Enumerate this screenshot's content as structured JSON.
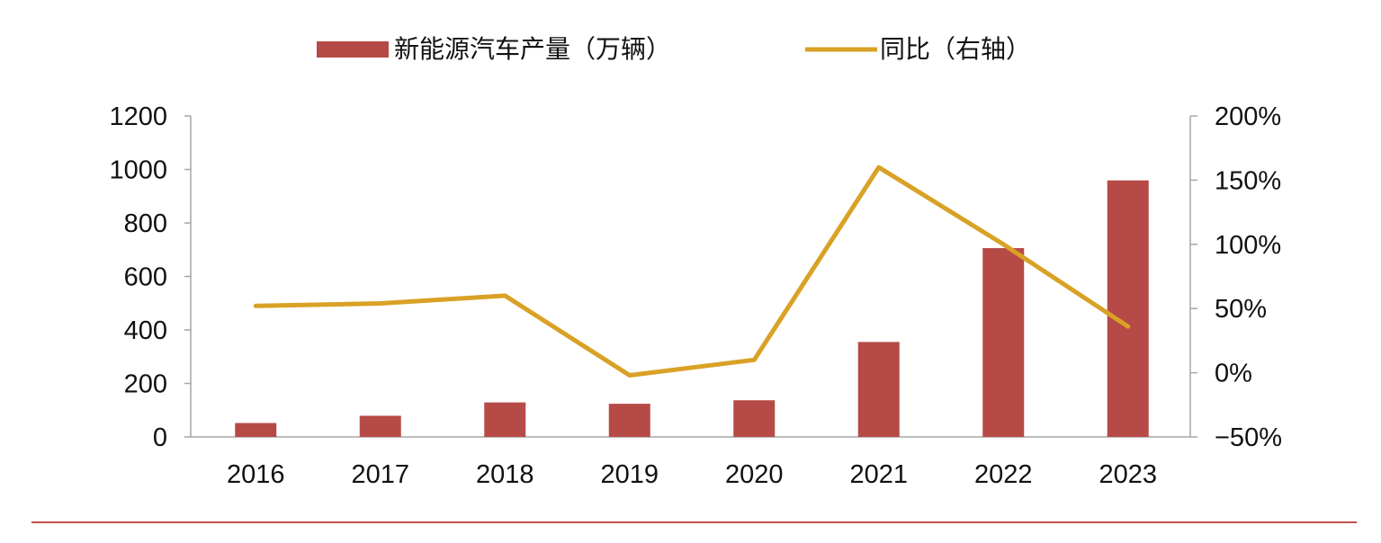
{
  "chart_data": {
    "type": "bar",
    "categories": [
      "2016",
      "2017",
      "2018",
      "2019",
      "2020",
      "2021",
      "2022",
      "2023"
    ],
    "series": [
      {
        "name": "新能源汽车产量（万辆）",
        "kind": "bar",
        "axis": "left",
        "color": "#b64a47",
        "values": [
          52,
          79,
          129,
          124,
          137,
          355,
          706,
          959
        ]
      },
      {
        "name": "同比（右轴）",
        "kind": "line",
        "axis": "right",
        "color": "#d9a125",
        "values": [
          0.52,
          0.54,
          0.6,
          -0.02,
          0.1,
          1.6,
          1.0,
          0.36
        ]
      }
    ],
    "y_left": {
      "min": 0,
      "max": 1200,
      "ticks": [
        0,
        200,
        400,
        600,
        800,
        1000,
        1200
      ],
      "tick_labels": [
        "0",
        "200",
        "400",
        "600",
        "800",
        "1000",
        "1200"
      ]
    },
    "y_right": {
      "min": -0.5,
      "max": 2.0,
      "ticks": [
        -0.5,
        0,
        0.5,
        1.0,
        1.5,
        2.0
      ],
      "tick_labels": [
        "−50%",
        "0%",
        "50%",
        "100%",
        "150%",
        "200%"
      ]
    },
    "grid": false,
    "legend_position": "top-center",
    "footer_rule_color": "#c0504d",
    "axis_color": "#a6a6a6"
  }
}
